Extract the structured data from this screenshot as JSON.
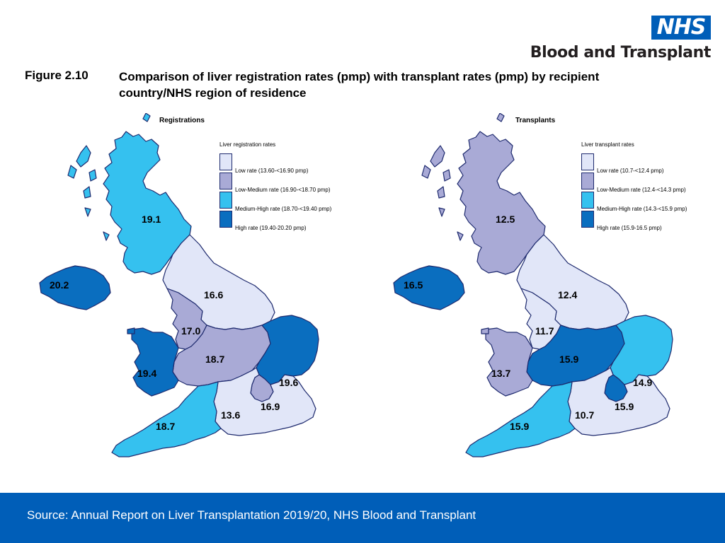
{
  "logo": {
    "nhs": "NHS",
    "org": "Blood and Transplant"
  },
  "figure": {
    "label": "Figure 2.10",
    "title": "Comparison of liver registration rates (pmp) with transplant rates (pmp) by recipient country/NHS region of residence"
  },
  "colors": {
    "low": "#e1e6f8",
    "low_medium": "#a9aad6",
    "medium_high": "#35c1ef",
    "high": "#0a6ebf",
    "footer": "#005eb8",
    "outline": "#1e2a6e"
  },
  "maps": [
    {
      "title": "Registrations",
      "legend_title": "Liver registration rates",
      "legend": [
        {
          "label": "Low rate (13.60-<16.90 pmp)",
          "level": "low"
        },
        {
          "label": "Low-Medium rate (16.90-<18.70 pmp)",
          "level": "low_medium"
        },
        {
          "label": "Medium-High rate (18.70-<19.40 pmp)",
          "level": "medium_high"
        },
        {
          "label": "High rate (19.40-20.20 pmp)",
          "level": "high"
        }
      ],
      "regions": [
        {
          "name": "Scotland",
          "value": "19.1",
          "level": "medium_high"
        },
        {
          "name": "Northern Ireland",
          "value": "20.2",
          "level": "high"
        },
        {
          "name": "North East and Yorkshire",
          "value": "16.6",
          "level": "low"
        },
        {
          "name": "North West",
          "value": "17.0",
          "level": "low_medium"
        },
        {
          "name": "Midlands",
          "value": "18.7",
          "level": "low_medium"
        },
        {
          "name": "Wales",
          "value": "19.4",
          "level": "high"
        },
        {
          "name": "East of England",
          "value": "19.6",
          "level": "high"
        },
        {
          "name": "London",
          "value": "16.9",
          "level": "low_medium"
        },
        {
          "name": "South East",
          "value": "13.6",
          "level": "low"
        },
        {
          "name": "South West",
          "value": "18.7",
          "level": "medium_high"
        }
      ]
    },
    {
      "title": "Transplants",
      "legend_title": "Liver transplant rates",
      "legend": [
        {
          "label": "Low rate (10.7-<12.4 pmp)",
          "level": "low"
        },
        {
          "label": "Low-Medium rate (12.4-<14.3 pmp)",
          "level": "low_medium"
        },
        {
          "label": "Medium-High rate (14.3-<15.9 pmp)",
          "level": "medium_high"
        },
        {
          "label": "High rate (15.9-16.5 pmp)",
          "level": "high"
        }
      ],
      "regions": [
        {
          "name": "Scotland",
          "value": "12.5",
          "level": "low_medium"
        },
        {
          "name": "Northern Ireland",
          "value": "16.5",
          "level": "high"
        },
        {
          "name": "North East and Yorkshire",
          "value": "12.4",
          "level": "low"
        },
        {
          "name": "North West",
          "value": "11.7",
          "level": "low"
        },
        {
          "name": "Midlands",
          "value": "15.9",
          "level": "high"
        },
        {
          "name": "Wales",
          "value": "13.7",
          "level": "low_medium"
        },
        {
          "name": "East of England",
          "value": "14.9",
          "level": "medium_high"
        },
        {
          "name": "London",
          "value": "15.9",
          "level": "high"
        },
        {
          "name": "South East",
          "value": "10.7",
          "level": "low"
        },
        {
          "name": "South West",
          "value": "15.9",
          "level": "medium_high"
        }
      ]
    }
  ],
  "footer": {
    "source": "Source: Annual Report on Liver Transplantation 2019/20, NHS Blood and Transplant"
  }
}
